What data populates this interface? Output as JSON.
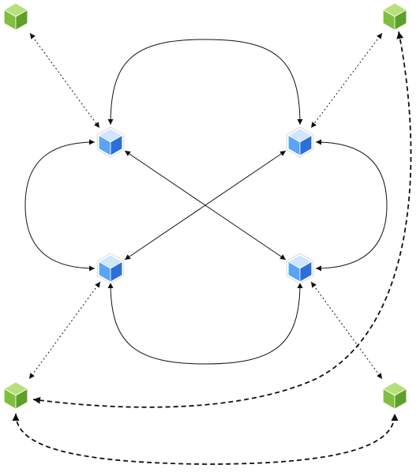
{
  "colors": {
    "background": "#ffffff",
    "edge": "#111111",
    "blue_top": "#cfe6ff",
    "blue_left": "#5aa4f3",
    "blue_right": "#2c6fd8",
    "green_top": "#b7e07a",
    "green_left": "#7fbf3d",
    "green_right": "#5e9e2a"
  },
  "nodes": [
    {
      "id": "blue-node-top-left",
      "kind": "blue",
      "icon": "cube-icon"
    },
    {
      "id": "blue-node-top-right",
      "kind": "blue",
      "icon": "cube-icon"
    },
    {
      "id": "blue-node-bottom-left",
      "kind": "blue",
      "icon": "cube-icon"
    },
    {
      "id": "blue-node-bottom-right",
      "kind": "blue",
      "icon": "cube-icon"
    },
    {
      "id": "green-node-top-left",
      "kind": "green",
      "icon": "cube-icon"
    },
    {
      "id": "green-node-top-right",
      "kind": "green",
      "icon": "cube-icon"
    },
    {
      "id": "green-node-bottom-left",
      "kind": "green",
      "icon": "cube-icon"
    },
    {
      "id": "green-node-bottom-right",
      "kind": "green",
      "icon": "cube-icon"
    }
  ],
  "edges": [
    {
      "id": "edge-top-arc",
      "from": "blue-node-top-left",
      "to": "blue-node-top-right",
      "style": "solid",
      "arrows": "both"
    },
    {
      "id": "edge-bottom-arc",
      "from": "blue-node-bottom-left",
      "to": "blue-node-bottom-right",
      "style": "solid",
      "arrows": "both"
    },
    {
      "id": "edge-left-arc",
      "from": "blue-node-top-left",
      "to": "blue-node-bottom-left",
      "style": "solid",
      "arrows": "both"
    },
    {
      "id": "edge-right-arc",
      "from": "blue-node-top-right",
      "to": "blue-node-bottom-right",
      "style": "solid",
      "arrows": "both"
    },
    {
      "id": "edge-diagonal-1",
      "from": "blue-node-top-left",
      "to": "blue-node-bottom-right",
      "style": "solid",
      "arrows": "both"
    },
    {
      "id": "edge-diagonal-2",
      "from": "blue-node-top-right",
      "to": "blue-node-bottom-left",
      "style": "solid",
      "arrows": "both"
    },
    {
      "id": "edge-dotted-tl",
      "from": "green-node-top-left",
      "to": "blue-node-top-left",
      "style": "dotted",
      "arrows": "both"
    },
    {
      "id": "edge-dotted-tr",
      "from": "green-node-top-right",
      "to": "blue-node-top-right",
      "style": "dotted",
      "arrows": "both"
    },
    {
      "id": "edge-dotted-bl",
      "from": "green-node-bottom-left",
      "to": "blue-node-bottom-left",
      "style": "dotted",
      "arrows": "both"
    },
    {
      "id": "edge-dotted-br",
      "from": "green-node-bottom-right",
      "to": "blue-node-bottom-right",
      "style": "dotted",
      "arrows": "both"
    },
    {
      "id": "edge-dashed-right",
      "from": "green-node-top-right",
      "to": "green-node-bottom-left",
      "style": "dashed",
      "arrows": "both"
    },
    {
      "id": "edge-dashed-bottom",
      "from": "green-node-bottom-left",
      "to": "green-node-bottom-right",
      "style": "dashed",
      "arrows": "both"
    }
  ]
}
